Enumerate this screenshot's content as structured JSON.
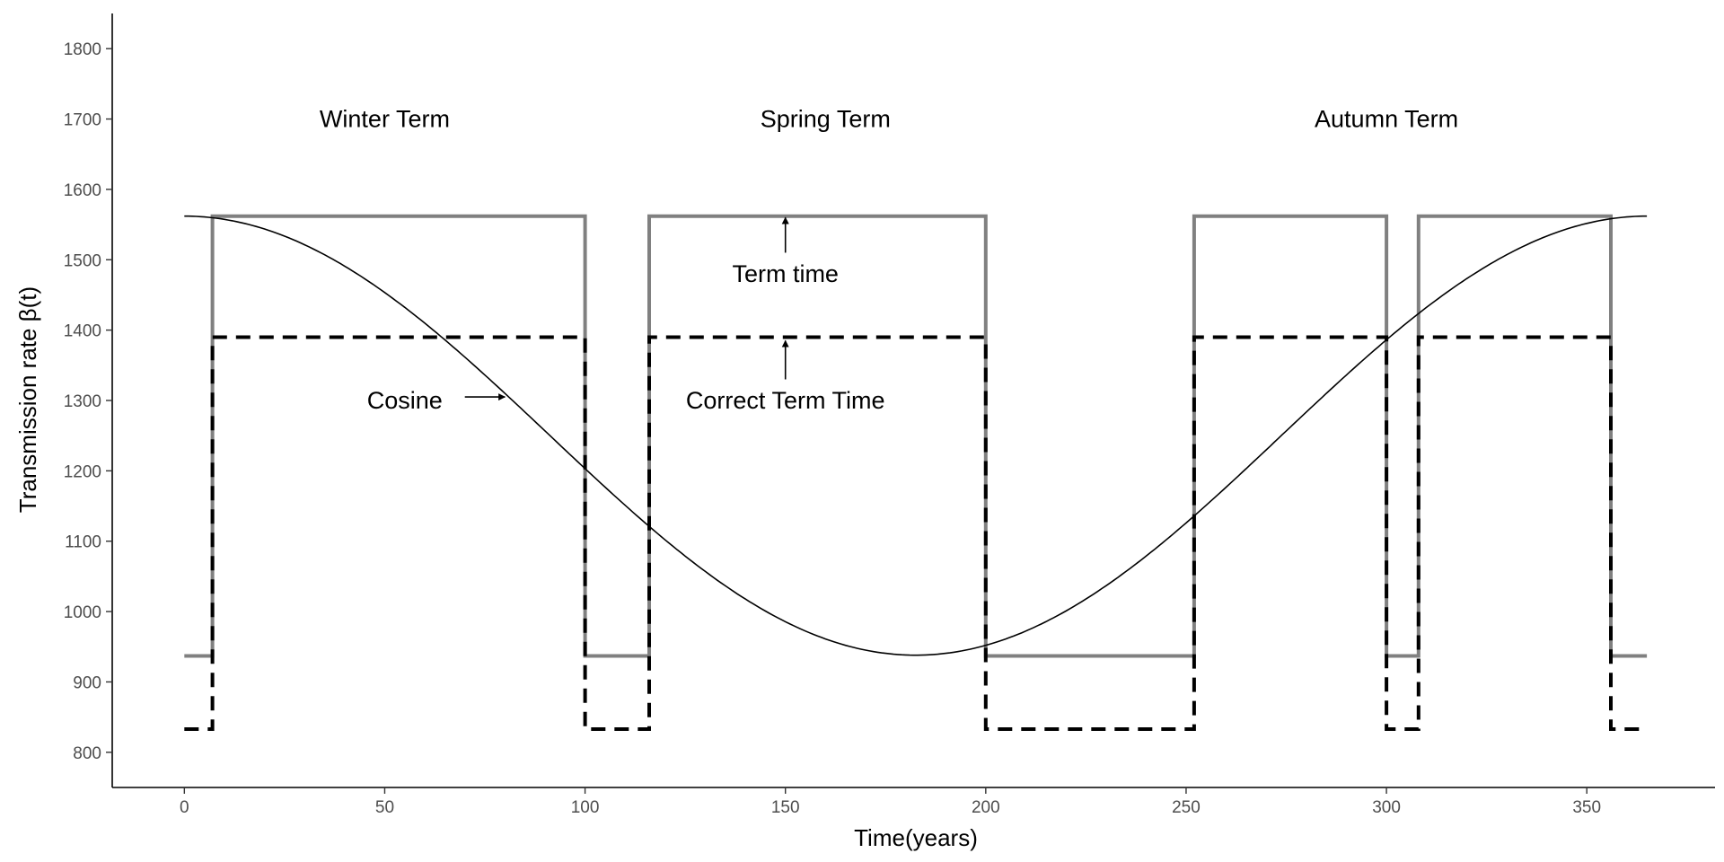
{
  "chart_data": {
    "type": "line",
    "title": "",
    "xlabel": "Time(years)",
    "ylabel": "Transmission rate β(t)",
    "xlim": [
      -18,
      382
    ],
    "ylim": [
      750,
      1850
    ],
    "x_ticks": [
      0,
      50,
      100,
      150,
      200,
      250,
      300,
      350
    ],
    "y_ticks": [
      800,
      900,
      1000,
      1100,
      1200,
      1300,
      1400,
      1500,
      1600,
      1700,
      1800
    ],
    "grid": false,
    "legend": "none",
    "series": [
      {
        "style": "solid-gray",
        "color": "#808080",
        "points": [
          [
            0,
            937
          ],
          [
            7,
            937
          ],
          [
            7,
            1562
          ],
          [
            100,
            1562
          ],
          [
            100,
            937
          ],
          [
            116,
            937
          ],
          [
            116,
            1562
          ],
          [
            200,
            1562
          ],
          [
            200,
            937
          ],
          [
            252,
            937
          ],
          [
            252,
            1562
          ],
          [
            300,
            1562
          ],
          [
            300,
            937
          ],
          [
            308,
            937
          ],
          [
            308,
            1562
          ],
          [
            356,
            1562
          ],
          [
            356,
            937
          ],
          [
            365,
            937
          ]
        ]
      },
      {
        "style": "dashed-black",
        "color": "#000000",
        "points": [
          [
            0,
            833
          ],
          [
            7,
            833
          ],
          [
            7,
            1390
          ],
          [
            100,
            1390
          ],
          [
            100,
            833
          ],
          [
            116,
            833
          ],
          [
            116,
            1390
          ],
          [
            200,
            1390
          ],
          [
            200,
            833
          ],
          [
            252,
            833
          ],
          [
            252,
            1390
          ],
          [
            300,
            1390
          ],
          [
            300,
            833
          ],
          [
            308,
            833
          ],
          [
            308,
            1390
          ],
          [
            356,
            1390
          ],
          [
            356,
            833
          ],
          [
            365,
            833
          ]
        ]
      },
      {
        "style": "thin-black-cosine",
        "color": "#000000",
        "function": "cosine",
        "mean": 1250,
        "amplitude": 312,
        "period": 365,
        "x_range": [
          0,
          365
        ]
      }
    ],
    "annotations": [
      {
        "text": "Winter Term",
        "x": 50,
        "y": 1700
      },
      {
        "text": "Spring Term",
        "x": 160,
        "y": 1700
      },
      {
        "text": "Autumn Term",
        "x": 300,
        "y": 1700
      },
      {
        "text": "Term time",
        "x": 150,
        "y": 1480,
        "arrow_from": [
          150,
          1510
        ],
        "arrow_to": [
          150,
          1560
        ]
      },
      {
        "text": "Correct Term Time",
        "x": 150,
        "y": 1300,
        "arrow_from": [
          150,
          1330
        ],
        "arrow_to": [
          150,
          1385
        ]
      },
      {
        "text": "Cosine",
        "x": 55,
        "y": 1300,
        "arrow_from": [
          70,
          1305
        ],
        "arrow_to": [
          80,
          1305
        ]
      }
    ]
  }
}
